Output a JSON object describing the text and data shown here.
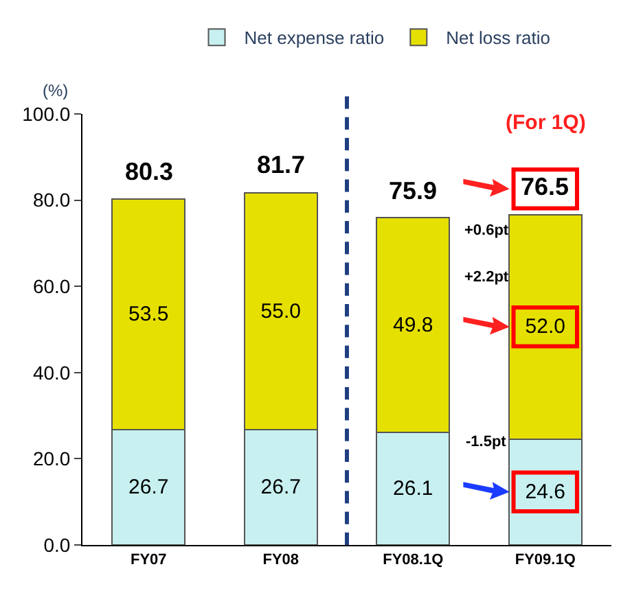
{
  "chart_data": {
    "type": "bar",
    "stacked": true,
    "ylabel": "(%)",
    "categories": [
      "FY07",
      "FY08",
      "FY08.1Q",
      "FY09.1Q"
    ],
    "series": [
      {
        "name": "Net expense ratio",
        "color": "#c8f0f0",
        "values": [
          26.7,
          26.7,
          26.1,
          24.6
        ]
      },
      {
        "name": "Net loss ratio",
        "color": "#e6e000",
        "values": [
          53.5,
          55.0,
          49.8,
          52.0
        ]
      }
    ],
    "totals": [
      "80.3",
      "81.7",
      "75.9",
      "76.5"
    ],
    "ylim": [
      0,
      100
    ],
    "yticks": [
      {
        "value": 0,
        "label": "0.0"
      },
      {
        "value": 20,
        "label": "20.0"
      },
      {
        "value": 40,
        "label": "40.0"
      },
      {
        "value": 60,
        "label": "60.0"
      },
      {
        "value": 80,
        "label": "80.0"
      },
      {
        "value": 100,
        "label": "100.0"
      }
    ],
    "value_labels": [
      [
        "26.7",
        "26.7",
        "26.1",
        "24.6"
      ],
      [
        "53.5",
        "55.0",
        "49.8",
        "52.0"
      ]
    ],
    "annotations": [
      "(For 1Q)",
      "+0.6pt",
      "+2.2pt",
      "-1.5pt"
    ],
    "legend": "top"
  }
}
